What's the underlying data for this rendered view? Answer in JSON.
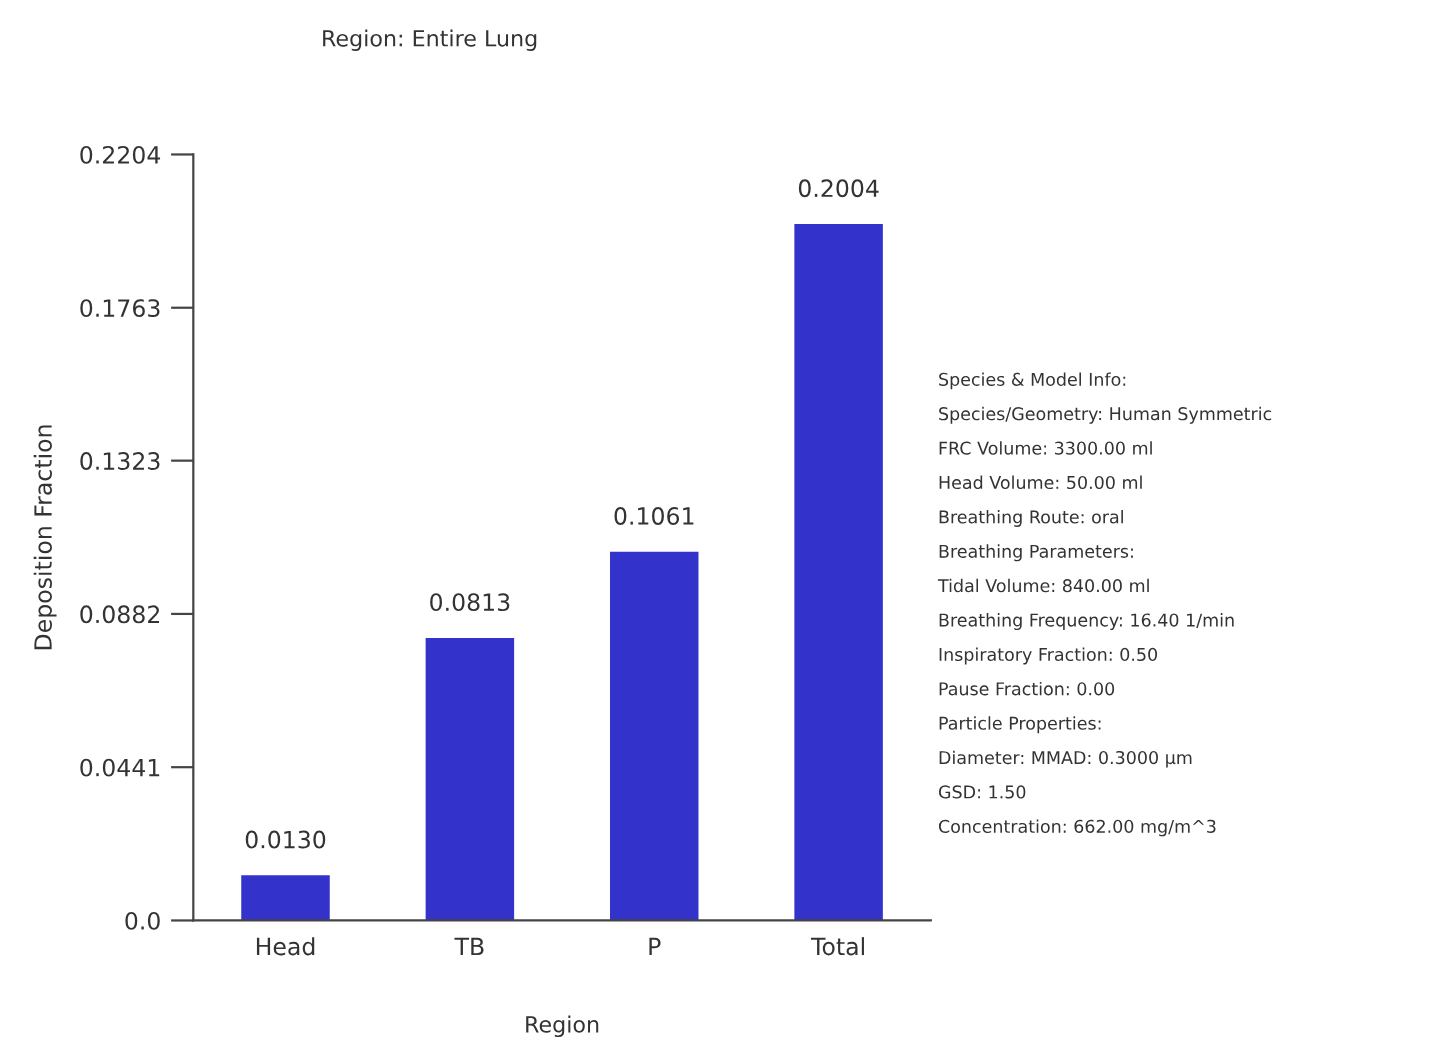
{
  "chart_data": {
    "type": "bar",
    "title": "Region: Entire Lung",
    "xlabel": "Region",
    "ylabel": "Deposition Fraction",
    "categories": [
      "Head",
      "TB",
      "P",
      "Total"
    ],
    "values": [
      0.013,
      0.0813,
      0.1061,
      0.2004
    ],
    "value_labels": [
      "0.0130",
      "0.0813",
      "0.1061",
      "0.2004"
    ],
    "color": "#3333cc",
    "ylim": [
      0,
      0.2204
    ],
    "yticks": [
      {
        "value": 0,
        "label": "0.0"
      },
      0.0441,
      0.0882,
      0.1323,
      0.1763,
      0.2204
    ],
    "grid": false,
    "annotations": [
      "Species & Model Info:",
      "Species/Geometry: Human Symmetric",
      "FRC Volume: 3300.00 ml",
      "Head Volume: 50.00 ml",
      "Breathing Route: oral",
      "Breathing Parameters:",
      "Tidal Volume: 840.00 ml",
      "Breathing Frequency: 16.40 1/min",
      "Inspiratory Fraction: 0.50",
      "Pause Fraction: 0.00",
      "Particle Properties:",
      "Diameter: MMAD: 0.3000 µm",
      "GSD: 1.50",
      "Concentration: 662.00 mg/m^3"
    ]
  }
}
